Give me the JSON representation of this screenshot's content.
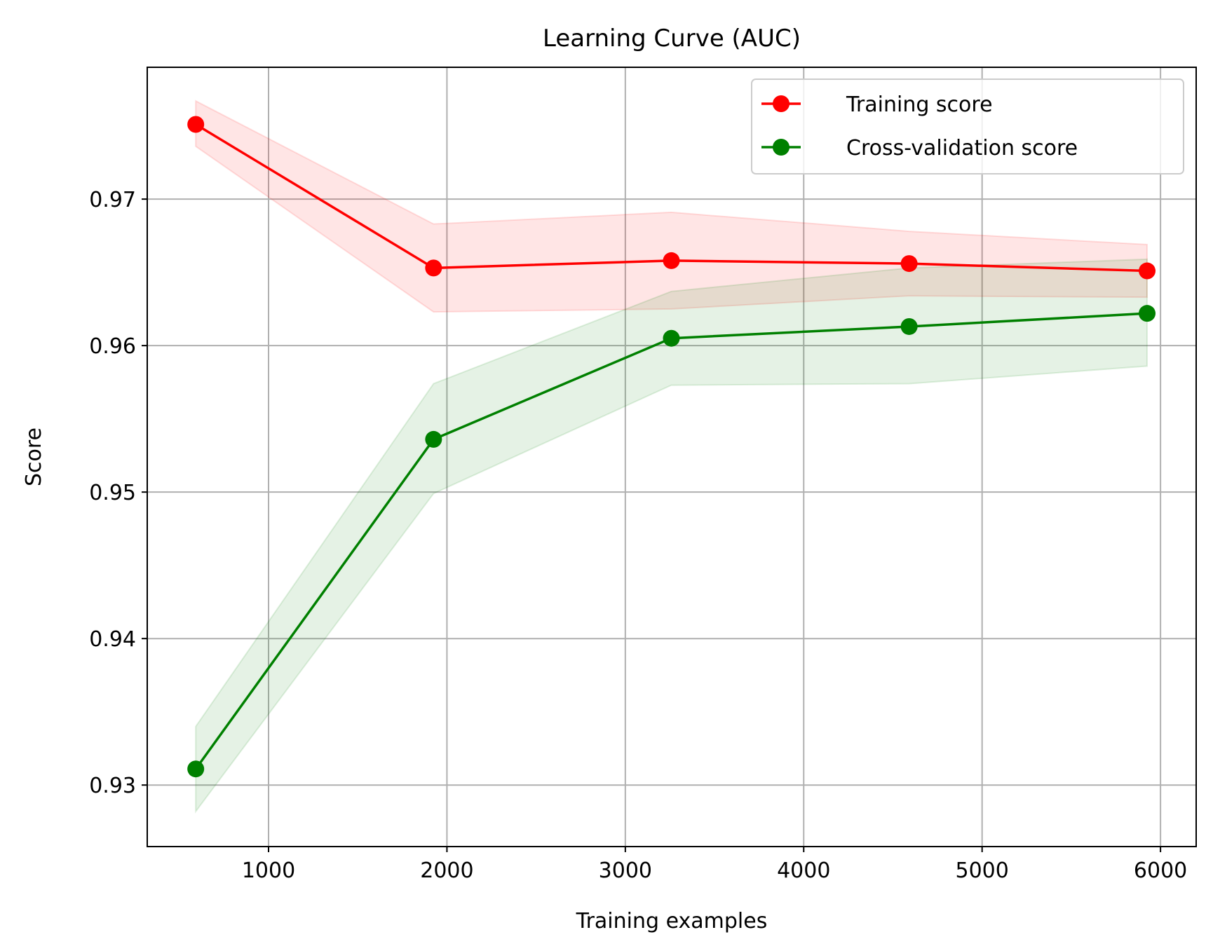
{
  "chart_data": {
    "type": "line",
    "title": "Learning Curve (AUC)",
    "xlabel": "Training examples",
    "ylabel": "Score",
    "xlim": [
      320,
      6200
    ],
    "ylim": [
      0.9258,
      0.979
    ],
    "xticks": [
      1000,
      2000,
      3000,
      4000,
      5000,
      6000
    ],
    "yticks": [
      0.93,
      0.94,
      0.95,
      0.96,
      0.97
    ],
    "ytick_labels": [
      "0.93",
      "0.94",
      "0.95",
      "0.96",
      "0.97"
    ],
    "grid": true,
    "legend_position": "top-right",
    "x": [
      592,
      1925,
      3258,
      4591,
      5925
    ],
    "series": [
      {
        "name": "Training score",
        "color": "#ff0000",
        "values": [
          0.9751,
          0.9653,
          0.9658,
          0.9656,
          0.9651
        ],
        "band_lower": [
          0.9736,
          0.9623,
          0.9625,
          0.9634,
          0.9633
        ],
        "band_upper": [
          0.9767,
          0.9683,
          0.9691,
          0.9678,
          0.9669
        ]
      },
      {
        "name": "Cross-validation score",
        "color": "#008000",
        "values": [
          0.9311,
          0.9536,
          0.9605,
          0.9613,
          0.9622
        ],
        "band_lower": [
          0.9282,
          0.9499,
          0.9573,
          0.9574,
          0.9586
        ],
        "band_upper": [
          0.934,
          0.9574,
          0.9637,
          0.9653,
          0.9659
        ]
      }
    ]
  }
}
